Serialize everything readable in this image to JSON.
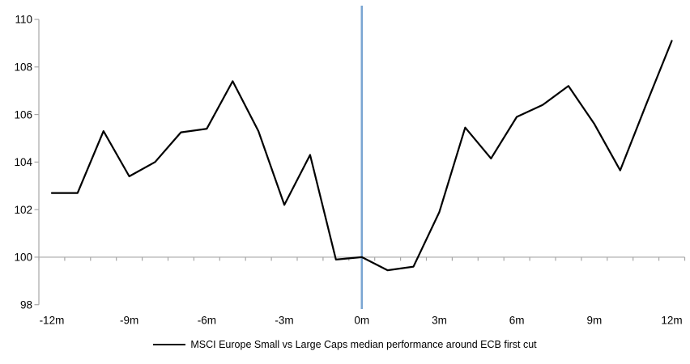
{
  "chart_data": {
    "type": "line",
    "title": "",
    "x": [
      -12,
      -11,
      -10,
      -9,
      -8,
      -7,
      -6,
      -5,
      -4,
      -3,
      -2,
      -1,
      0,
      1,
      2,
      3,
      4,
      5,
      6,
      7,
      8,
      9,
      10,
      11,
      12
    ],
    "x_labeled_values": [
      -12,
      -9,
      -6,
      -3,
      0,
      3,
      6,
      9,
      12
    ],
    "x_labeled_ticks": [
      "-12m",
      "-9m",
      "-6m",
      "-3m",
      "0m",
      "3m",
      "6m",
      "9m",
      "12m"
    ],
    "y_ticks": [
      98,
      100,
      102,
      104,
      106,
      108,
      110
    ],
    "ylim": [
      98,
      110
    ],
    "axis_cross_y": 100,
    "event_line_x": 0,
    "grid": "off",
    "legend_position": "bottom-center",
    "series": [
      {
        "name": "MSCI Europe Small vs Large Caps median performance around ECB first cut",
        "color": "#000000",
        "values": [
          102.7,
          102.7,
          105.3,
          103.4,
          104.0,
          105.25,
          105.4,
          107.4,
          105.3,
          102.2,
          104.3,
          99.9,
          100.0,
          99.45,
          99.6,
          101.9,
          105.45,
          104.15,
          105.9,
          106.4,
          107.2,
          105.6,
          103.65,
          106.4,
          109.1
        ]
      }
    ],
    "colors": {
      "event_line": "#7AA5D2",
      "axis": "#A6A6A6",
      "background": "#FFFFFF",
      "text": "#000000"
    }
  }
}
